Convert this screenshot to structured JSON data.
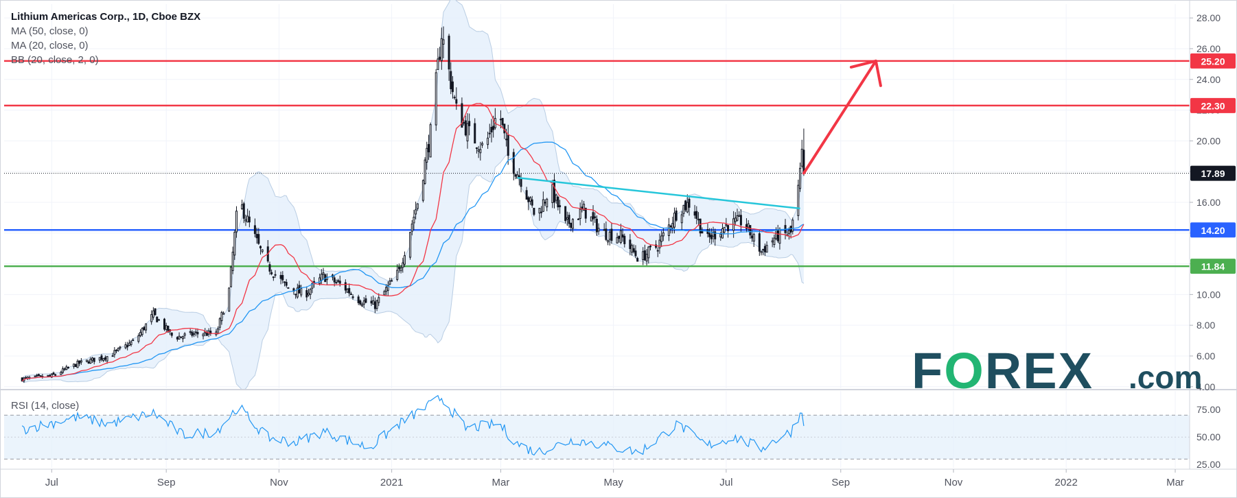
{
  "header": {
    "title": "Lithium Americas Corp., 1D, Cboe BZX",
    "indicators": [
      "MA (50, close, 0)",
      "MA (20, close, 0)",
      "BB (20, close, 2, 0)"
    ]
  },
  "rsi_panel": {
    "label": "RSI (14, close)"
  },
  "logo": {
    "text": "FOREX",
    "suffix": ".com",
    "colors": {
      "primary": "#1f4e5f",
      "accent": "#22b573"
    }
  },
  "colors": {
    "up_candle": "#ffffff",
    "down_candle": "#131722",
    "ma50": "#2196f3",
    "ma20": "#f23645",
    "bollinger_fill": "#e3effb",
    "resistance_red": "#f23645",
    "support_blue": "#2962ff",
    "support_green": "#4caf50",
    "trendline": "#26c6da",
    "current_price_tag": "#131722"
  },
  "chart_data": [
    {
      "type": "candlestick",
      "title": "Lithium Americas Corp., 1D, Cboe BZX",
      "x_ticks": [
        "Jul",
        "Sep",
        "Nov",
        "2021",
        "Mar",
        "May",
        "Jul",
        "Sep",
        "Nov",
        "2022",
        "Mar"
      ],
      "y_ticks": [
        "28.00",
        "26.00",
        "24.00",
        "22.00",
        "20.00",
        "18.00",
        "16.00",
        "14.00",
        "12.00",
        "10.00",
        "8.00",
        "6.00",
        "4.00"
      ],
      "ylim": [
        3.9,
        28.9
      ],
      "grid": true,
      "last_price": 17.89,
      "price_levels": [
        {
          "label": "25.20",
          "value": 25.2,
          "color": "#f23645"
        },
        {
          "label": "22.30",
          "value": 22.3,
          "color": "#f23645"
        },
        {
          "label": "14.20",
          "value": 14.2,
          "color": "#2962ff"
        },
        {
          "label": "11.84",
          "value": 11.84,
          "color": "#4caf50"
        }
      ],
      "last_price_label": "17.89",
      "trendline": {
        "from": [
          "2021-03-10",
          17.6
        ],
        "to": [
          "2021-08-10",
          15.6
        ]
      },
      "arrow": {
        "from": [
          "2021-08-12",
          17.9
        ],
        "to": [
          "2021-09-20",
          25.2
        ]
      },
      "series_close_anchors": [
        [
          "2020-06-15",
          4.5
        ],
        [
          "2020-07-01",
          4.7
        ],
        [
          "2020-07-15",
          5.5
        ],
        [
          "2020-08-01",
          6.0
        ],
        [
          "2020-08-15",
          7.0
        ],
        [
          "2020-08-25",
          8.7
        ],
        [
          "2020-09-05",
          7.2
        ],
        [
          "2020-09-20",
          7.5
        ],
        [
          "2020-09-28",
          7.4
        ],
        [
          "2020-10-05",
          10.3
        ],
        [
          "2020-10-10",
          16.2
        ],
        [
          "2020-10-18",
          14.0
        ],
        [
          "2020-10-25",
          12.0
        ],
        [
          "2020-11-05",
          10.5
        ],
        [
          "2020-11-15",
          10.0
        ],
        [
          "2020-11-25",
          11.2
        ],
        [
          "2020-12-05",
          10.6
        ],
        [
          "2020-12-15",
          9.6
        ],
        [
          "2020-12-23",
          9.3
        ],
        [
          "2021-01-05",
          11.5
        ],
        [
          "2021-01-15",
          16.0
        ],
        [
          "2021-01-22",
          20.5
        ],
        [
          "2021-01-28",
          27.0
        ],
        [
          "2021-02-05",
          22.0
        ],
        [
          "2021-02-12",
          20.5
        ],
        [
          "2021-02-20",
          19.5
        ],
        [
          "2021-02-28",
          22.0
        ],
        [
          "2021-03-05",
          19.0
        ],
        [
          "2021-03-12",
          17.5
        ],
        [
          "2021-03-20",
          15.0
        ],
        [
          "2021-03-28",
          17.0
        ],
        [
          "2021-04-05",
          14.5
        ],
        [
          "2021-04-15",
          15.5
        ],
        [
          "2021-04-25",
          14.0
        ],
        [
          "2021-05-05",
          13.8
        ],
        [
          "2021-05-15",
          12.3
        ],
        [
          "2021-05-25",
          13.2
        ],
        [
          "2021-06-05",
          15.5
        ],
        [
          "2021-06-12",
          16.0
        ],
        [
          "2021-06-20",
          13.5
        ],
        [
          "2021-07-01",
          14.5
        ],
        [
          "2021-07-10",
          14.8
        ],
        [
          "2021-07-20",
          12.8
        ],
        [
          "2021-07-28",
          13.8
        ],
        [
          "2021-08-05",
          14.0
        ],
        [
          "2021-08-09",
          16.8
        ],
        [
          "2021-08-11",
          19.0
        ],
        [
          "2021-08-12",
          17.89
        ]
      ]
    },
    {
      "type": "line",
      "title": "RSI (14, close)",
      "y_ticks": [
        "75.00",
        "50.00",
        "25.00"
      ],
      "ylim": [
        22,
        92
      ],
      "band": [
        30,
        70
      ],
      "rsi_anchors": [
        [
          "2020-06-15",
          57
        ],
        [
          "2020-07-15",
          68
        ],
        [
          "2020-08-01",
          62
        ],
        [
          "2020-08-25",
          72
        ],
        [
          "2020-09-10",
          52
        ],
        [
          "2020-09-28",
          55
        ],
        [
          "2020-10-10",
          78
        ],
        [
          "2020-10-25",
          50
        ],
        [
          "2020-11-10",
          45
        ],
        [
          "2020-11-25",
          55
        ],
        [
          "2020-12-20",
          40
        ],
        [
          "2021-01-05",
          62
        ],
        [
          "2021-01-28",
          86
        ],
        [
          "2021-02-10",
          58
        ],
        [
          "2021-02-28",
          62
        ],
        [
          "2021-03-10",
          44
        ],
        [
          "2021-03-20",
          36
        ],
        [
          "2021-04-10",
          48
        ],
        [
          "2021-05-15",
          36
        ],
        [
          "2021-06-05",
          62
        ],
        [
          "2021-06-20",
          42
        ],
        [
          "2021-07-05",
          50
        ],
        [
          "2021-07-20",
          40
        ],
        [
          "2021-08-05",
          55
        ],
        [
          "2021-08-11",
          74
        ],
        [
          "2021-08-12",
          65
        ]
      ]
    }
  ]
}
